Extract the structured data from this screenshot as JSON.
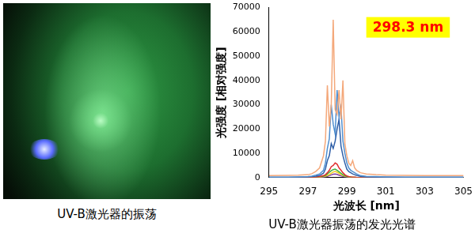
{
  "photo": {
    "caption": "UV-B激光器的振荡"
  },
  "chart_data": {
    "type": "line",
    "title": "UV-B激光器振荡的发光光谱",
    "x_label": "光波长 [nm]",
    "y_label": "光强度 [相对强度]",
    "annotations": [
      {
        "text": "298.3 nm"
      }
    ],
    "x": [
      295,
      296,
      296.5,
      297,
      297.2,
      297.4,
      297.6,
      297.8,
      297.9,
      298.0,
      298.1,
      298.2,
      298.3,
      298.4,
      298.5,
      298.6,
      298.7,
      298.8,
      298.9,
      299.0,
      299.1,
      299.2,
      299.3,
      299.4,
      299.5,
      299.7,
      300,
      300.5,
      301,
      302,
      303,
      304,
      305
    ],
    "series": [
      {
        "color": "#f4a87a",
        "values": [
          800,
          900,
          1000,
          1200,
          1600,
          2500,
          4000,
          9000,
          15000,
          38000,
          21000,
          30000,
          65000,
          28000,
          26000,
          36000,
          24000,
          40000,
          14000,
          9000,
          6000,
          5000,
          7000,
          4000,
          3000,
          2000,
          1500,
          1200,
          1000,
          900,
          800,
          800,
          800
        ]
      },
      {
        "color": "#4f8fd0",
        "values": [
          200,
          200,
          300,
          400,
          600,
          1000,
          1500,
          3000,
          6000,
          12000,
          16000,
          30000,
          22000,
          18000,
          36000,
          25000,
          29000,
          15000,
          10000,
          6000,
          4000,
          3000,
          2500,
          2000,
          1500,
          800,
          500,
          400,
          300,
          200,
          200,
          200,
          200
        ]
      },
      {
        "color": "#2e5fa8",
        "values": [
          100,
          100,
          200,
          300,
          400,
          600,
          900,
          1800,
          3500,
          7000,
          9000,
          14000,
          12000,
          15000,
          20000,
          24000,
          13000,
          9000,
          6000,
          3500,
          2500,
          2000,
          1500,
          1200,
          900,
          500,
          300,
          200,
          200,
          100,
          100,
          100,
          100
        ]
      },
      {
        "color": "#e03030",
        "values": [
          0,
          0,
          0,
          50,
          100,
          200,
          400,
          800,
          1200,
          2000,
          3000,
          4500,
          5000,
          6000,
          5500,
          4000,
          3000,
          2000,
          1200,
          700,
          400,
          300,
          200,
          150,
          100,
          50,
          0,
          0,
          0,
          0,
          0,
          0,
          0
        ]
      },
      {
        "color": "#40b040",
        "values": [
          0,
          0,
          0,
          30,
          80,
          150,
          300,
          600,
          900,
          1500,
          2200,
          2800,
          3300,
          3500,
          3000,
          2400,
          1800,
          1200,
          800,
          500,
          300,
          200,
          120,
          80,
          50,
          30,
          0,
          0,
          0,
          0,
          0,
          0,
          0
        ]
      },
      {
        "color": "#f0d020",
        "values": [
          0,
          0,
          0,
          0,
          50,
          100,
          200,
          400,
          600,
          900,
          1300,
          1800,
          2300,
          2500,
          2200,
          1800,
          1300,
          900,
          600,
          400,
          250,
          150,
          100,
          80,
          50,
          20,
          0,
          0,
          0,
          0,
          0,
          0,
          0
        ]
      },
      {
        "color": "#8040a0",
        "values": [
          0,
          0,
          0,
          0,
          30,
          60,
          100,
          200,
          300,
          500,
          800,
          1100,
          1400,
          1500,
          1300,
          1000,
          700,
          500,
          300,
          200,
          100,
          80,
          50,
          30,
          20,
          0,
          0,
          0,
          0,
          0,
          0,
          0,
          0
        ]
      }
    ],
    "xlim": [
      295,
      305
    ],
    "xticks": [
      295,
      297,
      299,
      301,
      303,
      305
    ],
    "ylim": [
      0,
      70000
    ],
    "yticks": [
      0,
      10000,
      20000,
      30000,
      40000,
      50000,
      60000,
      70000
    ],
    "grid": false
  }
}
